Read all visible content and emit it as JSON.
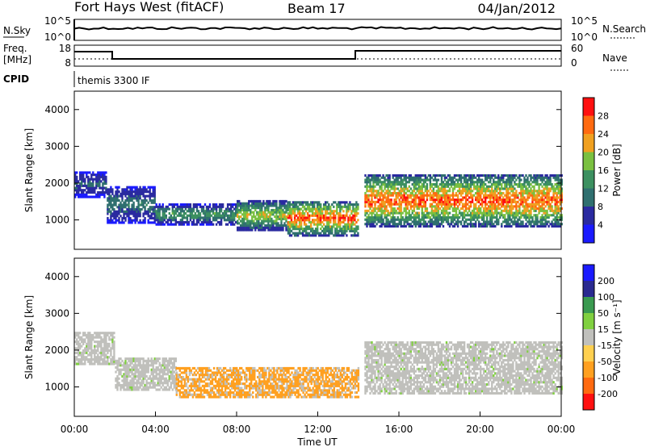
{
  "header": {
    "station": "Fort Hays West (fitACF)",
    "beam": "Beam 17",
    "date": "04/Jan/2012"
  },
  "panels": {
    "nsky": {
      "left_label": "N.Sky",
      "right_label": "N.Search",
      "ticks_left": [
        "10^5",
        "10^0"
      ],
      "ticks_right": [
        "10^5",
        "10^0"
      ]
    },
    "freq": {
      "label_line1": "Freq.",
      "label_line2": "[MHz]",
      "ticks_left": [
        "18",
        "8"
      ],
      "ticks_right": [
        "60",
        "0"
      ],
      "right_label": "Nave"
    },
    "cpid": {
      "label": "CPID",
      "text": "themis 3300 IF"
    }
  },
  "colors": {
    "power_scale": [
      "#1a1aff",
      "#2a2aa0",
      "#2f6f6f",
      "#3c9060",
      "#7ac040",
      "#f0a020",
      "#ff6a10",
      "#ff1010"
    ],
    "velocity_scale": [
      "#ff1010",
      "#ff6a10",
      "#ffa020",
      "#ffd050",
      "#c0c0bc",
      "#80d040",
      "#3a9a50",
      "#2a2a90",
      "#1a1aff"
    ],
    "ground_scatter": "#c0c0bc"
  },
  "chart_data": [
    {
      "type": "heatmap",
      "name": "power",
      "ylabel": "Slant Range [km]",
      "yticks": [
        "1000",
        "2000",
        "3000",
        "4000"
      ],
      "ylim": [
        200,
        4500
      ],
      "xlim": [
        0,
        24
      ],
      "colorbar": {
        "label": "Power [dB]",
        "ticks": [
          "4",
          "8",
          "12",
          "16",
          "20",
          "24",
          "28"
        ],
        "range": [
          0,
          32
        ]
      },
      "regions": [
        {
          "t": [
            0.0,
            1.6
          ],
          "r": [
            1600,
            2300
          ],
          "peak_db": 10
        },
        {
          "t": [
            1.6,
            4.0
          ],
          "r": [
            900,
            1900
          ],
          "peak_db": 12
        },
        {
          "t": [
            4.0,
            8.0
          ],
          "r": [
            850,
            1400
          ],
          "peak_db": 16
        },
        {
          "t": [
            8.0,
            10.5
          ],
          "r": [
            700,
            1500
          ],
          "peak_db": 22
        },
        {
          "t": [
            10.5,
            14.0
          ],
          "r": [
            550,
            1500
          ],
          "peak_db": 30
        },
        {
          "t": [
            14.3,
            24.0
          ],
          "r": [
            800,
            2200
          ],
          "peak_db": 30
        }
      ]
    },
    {
      "type": "heatmap",
      "name": "velocity",
      "ylabel": "Slant Range [km]",
      "xlabel": "Time UT",
      "xticks": [
        "00:00",
        "04:00",
        "08:00",
        "12:00",
        "16:00",
        "20:00",
        "00:00"
      ],
      "yticks": [
        "1000",
        "2000",
        "3000",
        "4000"
      ],
      "ylim": [
        200,
        4500
      ],
      "xlim": [
        0,
        24
      ],
      "colorbar": {
        "label": "Velocity [m s⁻¹]",
        "ticks": [
          "200",
          "100",
          "50",
          "15",
          "-15",
          "-50",
          "-100",
          "-200"
        ],
        "range": [
          -250,
          250
        ]
      },
      "regions": [
        {
          "t": [
            0.0,
            2.0
          ],
          "r": [
            1600,
            2500
          ],
          "class": "ground_scatter"
        },
        {
          "t": [
            2.0,
            5.0
          ],
          "r": [
            900,
            1800
          ],
          "class": "ground_scatter"
        },
        {
          "t": [
            5.0,
            14.0
          ],
          "r": [
            700,
            1500
          ],
          "class": "orange",
          "velocity_ms": -60
        },
        {
          "t": [
            14.3,
            24.0
          ],
          "r": [
            800,
            2200
          ],
          "class": "ground_scatter"
        }
      ]
    }
  ]
}
